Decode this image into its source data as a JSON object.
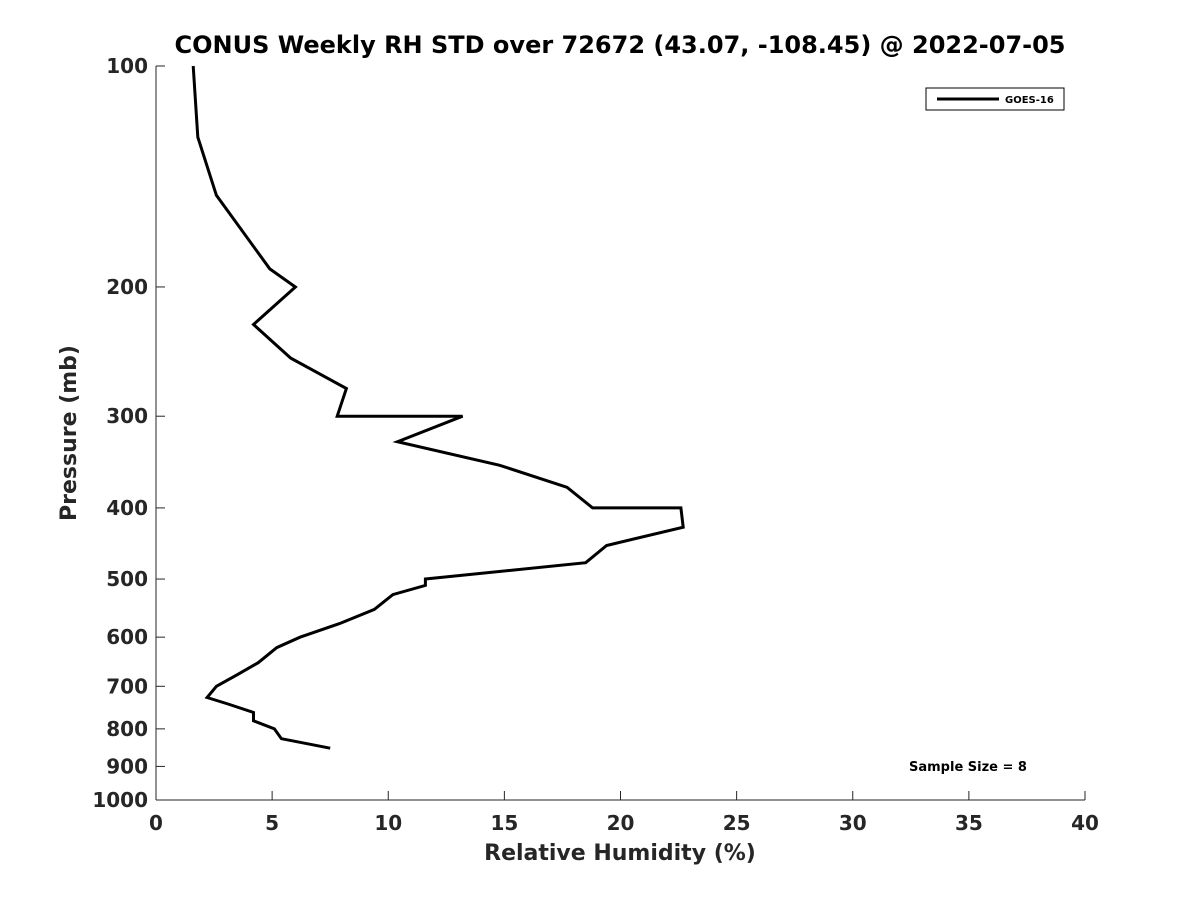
{
  "chart_data": {
    "type": "line",
    "title": "CONUS Weekly RH STD over 72672 (43.07, -108.45) @ 2022-07-05",
    "xlabel": "Relative Humidity (%)",
    "ylabel": "Pressure (mb)",
    "xlim": [
      0,
      40
    ],
    "ylim": [
      100,
      1000
    ],
    "y_scale": "log",
    "y_reversed": true,
    "x_ticks": [
      "0",
      "5",
      "10",
      "15",
      "20",
      "25",
      "30",
      "35",
      "40"
    ],
    "y_ticks": [
      "100",
      "200",
      "300",
      "400",
      "500",
      "600",
      "700",
      "800",
      "900",
      "1000"
    ],
    "grid": false,
    "legend_position": "top-right",
    "series": [
      {
        "name": "GOES-16",
        "color": "#000000",
        "points": [
          {
            "x": 1.6,
            "y": 100
          },
          {
            "x": 1.8,
            "y": 125
          },
          {
            "x": 2.6,
            "y": 150
          },
          {
            "x": 4.9,
            "y": 189
          },
          {
            "x": 6.0,
            "y": 200
          },
          {
            "x": 4.2,
            "y": 225
          },
          {
            "x": 5.8,
            "y": 250
          },
          {
            "x": 8.2,
            "y": 275
          },
          {
            "x": 7.8,
            "y": 300
          },
          {
            "x": 13.2,
            "y": 300
          },
          {
            "x": 10.4,
            "y": 325
          },
          {
            "x": 14.8,
            "y": 350
          },
          {
            "x": 17.7,
            "y": 375
          },
          {
            "x": 18.8,
            "y": 400
          },
          {
            "x": 22.6,
            "y": 400
          },
          {
            "x": 22.7,
            "y": 425
          },
          {
            "x": 19.4,
            "y": 450
          },
          {
            "x": 18.5,
            "y": 475
          },
          {
            "x": 11.6,
            "y": 500
          },
          {
            "x": 11.6,
            "y": 510
          },
          {
            "x": 10.2,
            "y": 525
          },
          {
            "x": 9.4,
            "y": 550
          },
          {
            "x": 7.9,
            "y": 575
          },
          {
            "x": 6.2,
            "y": 600
          },
          {
            "x": 5.2,
            "y": 620
          },
          {
            "x": 4.4,
            "y": 650
          },
          {
            "x": 3.5,
            "y": 675
          },
          {
            "x": 2.6,
            "y": 700
          },
          {
            "x": 2.2,
            "y": 725
          },
          {
            "x": 3.1,
            "y": 740
          },
          {
            "x": 4.2,
            "y": 760
          },
          {
            "x": 4.2,
            "y": 780
          },
          {
            "x": 5.1,
            "y": 800
          },
          {
            "x": 5.4,
            "y": 825
          },
          {
            "x": 7.5,
            "y": 850
          }
        ]
      }
    ],
    "annotations": [
      "Sample Size = 8"
    ]
  }
}
